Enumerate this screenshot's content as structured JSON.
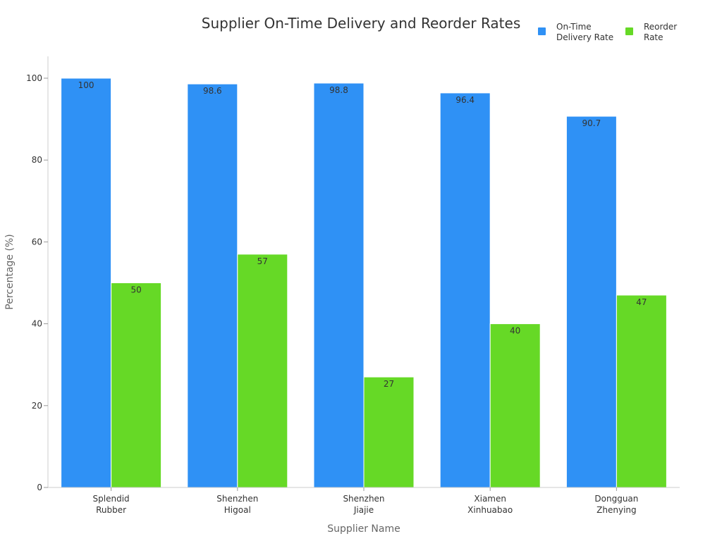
{
  "chart_data": {
    "type": "bar",
    "title": "Supplier On-Time Delivery and Reorder Rates",
    "xlabel": "Supplier Name",
    "ylabel": "Percentage (%)",
    "categories": [
      [
        "Splendid",
        "Rubber"
      ],
      [
        "Shenzhen",
        "Higoal"
      ],
      [
        "Shenzhen",
        "Jiajie"
      ],
      [
        "Xiamen",
        "Xinhuabao"
      ],
      [
        "Dongguan",
        "Zhenying"
      ]
    ],
    "series": [
      {
        "name_lines": [
          "On-Time",
          "Delivery Rate"
        ],
        "color": "#2f91f5",
        "values": [
          100,
          98.6,
          98.8,
          96.4,
          90.7
        ]
      },
      {
        "name_lines": [
          "Reorder",
          "Rate"
        ],
        "color": "#66d926",
        "values": [
          50,
          57,
          27,
          40,
          47
        ]
      }
    ],
    "ylim": [
      0,
      105
    ],
    "yticks": [
      0,
      20,
      40,
      60,
      80,
      100
    ],
    "grid": false,
    "legend_position": "top-right",
    "data_labels": true
  }
}
